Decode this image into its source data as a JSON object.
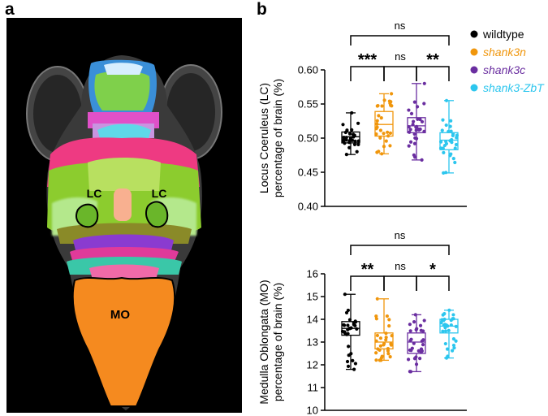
{
  "panel_labels": {
    "a": "a",
    "b": "b"
  },
  "brain_labels": {
    "lc_left": "LC",
    "lc_right": "LC",
    "mo": "MO"
  },
  "legend": [
    {
      "label": "wildtype",
      "color": "#000000",
      "italic": false
    },
    {
      "label": "shank3n",
      "color": "#f0960c",
      "italic": true
    },
    {
      "label": "shank3c",
      "color": "#6a2ea0",
      "italic": true
    },
    {
      "label": "shank3-ZbT",
      "color": "#2cc6ee",
      "italic": true
    }
  ],
  "chart_data": [
    {
      "type": "box",
      "ylabel": [
        "Locus Coeruleus (LC)",
        "percentage of brain (%)"
      ],
      "ylim": [
        0.4,
        0.6
      ],
      "yticks": [
        "0.40",
        "0.45",
        "0.50",
        "0.55",
        "0.60"
      ],
      "series": [
        {
          "name": "wildtype",
          "color": "#000000",
          "min": 0.476,
          "q1": 0.493,
          "median": 0.502,
          "q3": 0.509,
          "max": 0.537
        },
        {
          "name": "shank3n",
          "color": "#f0960c",
          "min": 0.477,
          "q1": 0.503,
          "median": 0.52,
          "q3": 0.539,
          "max": 0.565
        },
        {
          "name": "shank3c",
          "color": "#6a2ea0",
          "min": 0.468,
          "q1": 0.508,
          "median": 0.518,
          "q3": 0.53,
          "max": 0.58
        },
        {
          "name": "shank3-ZbT",
          "color": "#2cc6ee",
          "min": 0.449,
          "q1": 0.483,
          "median": 0.497,
          "q3": 0.508,
          "max": 0.555
        }
      ],
      "significance": [
        {
          "from": 0,
          "to": 3,
          "label": "ns",
          "level": 3
        },
        {
          "from": 0,
          "to": 1,
          "label": "***",
          "level": 1
        },
        {
          "from": 1,
          "to": 2,
          "label": "ns",
          "level": 2
        },
        {
          "from": 2,
          "to": 3,
          "label": "**",
          "level": 1
        }
      ]
    },
    {
      "type": "box",
      "ylabel": [
        "Medulla Oblongata (MO)",
        "percentage of brain (%)"
      ],
      "ylim": [
        10,
        16
      ],
      "yticks": [
        "10",
        "11",
        "12",
        "13",
        "14",
        "15",
        "16"
      ],
      "series": [
        {
          "name": "wildtype",
          "color": "#000000",
          "min": 11.8,
          "q1": 13.3,
          "median": 13.6,
          "q3": 13.9,
          "max": 15.1
        },
        {
          "name": "shank3n",
          "color": "#f0960c",
          "min": 12.2,
          "q1": 12.7,
          "median": 13.0,
          "q3": 13.4,
          "max": 14.9
        },
        {
          "name": "shank3c",
          "color": "#6a2ea0",
          "min": 11.7,
          "q1": 12.5,
          "median": 13.0,
          "q3": 13.4,
          "max": 14.2
        },
        {
          "name": "shank3-ZbT",
          "color": "#2cc6ee",
          "min": 12.3,
          "q1": 13.4,
          "median": 13.7,
          "q3": 14.0,
          "max": 14.4
        }
      ],
      "significance": [
        {
          "from": 0,
          "to": 3,
          "label": "ns",
          "level": 3
        },
        {
          "from": 0,
          "to": 1,
          "label": "**",
          "level": 1
        },
        {
          "from": 1,
          "to": 2,
          "label": "ns",
          "level": 2
        },
        {
          "from": 2,
          "to": 3,
          "label": "*",
          "level": 1
        }
      ]
    }
  ]
}
